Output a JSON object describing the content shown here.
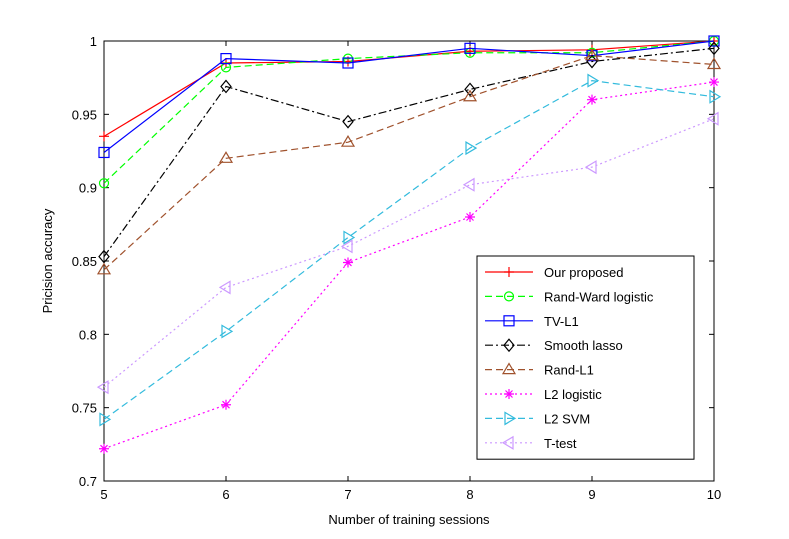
{
  "chart_data": {
    "type": "line",
    "title": "",
    "xlabel": "Number of training sessions",
    "ylabel": "Pricision accuracy",
    "xlim": [
      5,
      10
    ],
    "ylim": [
      0.7,
      1.0
    ],
    "x": [
      5,
      6,
      7,
      8,
      9,
      10
    ],
    "xticks": [
      "5",
      "6",
      "7",
      "8",
      "9",
      "10"
    ],
    "yticks": [
      "0.7",
      "0.75",
      "0.8",
      "0.85",
      "0.9",
      "0.95",
      "1"
    ],
    "grid": false,
    "legend_position": "bottom-right",
    "series": [
      {
        "name": "Our proposed",
        "values": [
          0.935,
          0.985,
          0.986,
          0.993,
          0.994,
          1.0
        ],
        "color": "#ff0000",
        "dash": "solid",
        "marker": "plus"
      },
      {
        "name": "Rand-Ward logistic",
        "values": [
          0.903,
          0.982,
          0.988,
          0.992,
          0.992,
          1.0
        ],
        "color": "#00ff00",
        "dash": "dashed",
        "marker": "circle"
      },
      {
        "name": "TV-L1",
        "values": [
          0.924,
          0.988,
          0.985,
          0.995,
          0.99,
          1.0
        ],
        "color": "#0000ff",
        "dash": "solid",
        "marker": "square"
      },
      {
        "name": "Smooth lasso",
        "values": [
          0.853,
          0.969,
          0.945,
          0.967,
          0.986,
          0.995
        ],
        "color": "#000000",
        "dash": "dashdot",
        "marker": "diamond"
      },
      {
        "name": "Rand-L1",
        "values": [
          0.844,
          0.92,
          0.931,
          0.962,
          0.99,
          0.984
        ],
        "color": "#a0522d",
        "dash": "dashed",
        "marker": "triangle-up"
      },
      {
        "name": "L2 logistic",
        "values": [
          0.722,
          0.752,
          0.849,
          0.88,
          0.96,
          0.972
        ],
        "color": "#ff00ff",
        "dash": "dotted",
        "marker": "asterisk"
      },
      {
        "name": "L2 SVM",
        "values": [
          0.742,
          0.802,
          0.866,
          0.927,
          0.973,
          0.962
        ],
        "color": "#33bbdd",
        "dash": "dashed",
        "marker": "triangle-right"
      },
      {
        "name": "T-test",
        "values": [
          0.764,
          0.832,
          0.86,
          0.902,
          0.914,
          0.947
        ],
        "color": "#cc99ff",
        "dash": "dotted",
        "marker": "triangle-left"
      }
    ]
  }
}
